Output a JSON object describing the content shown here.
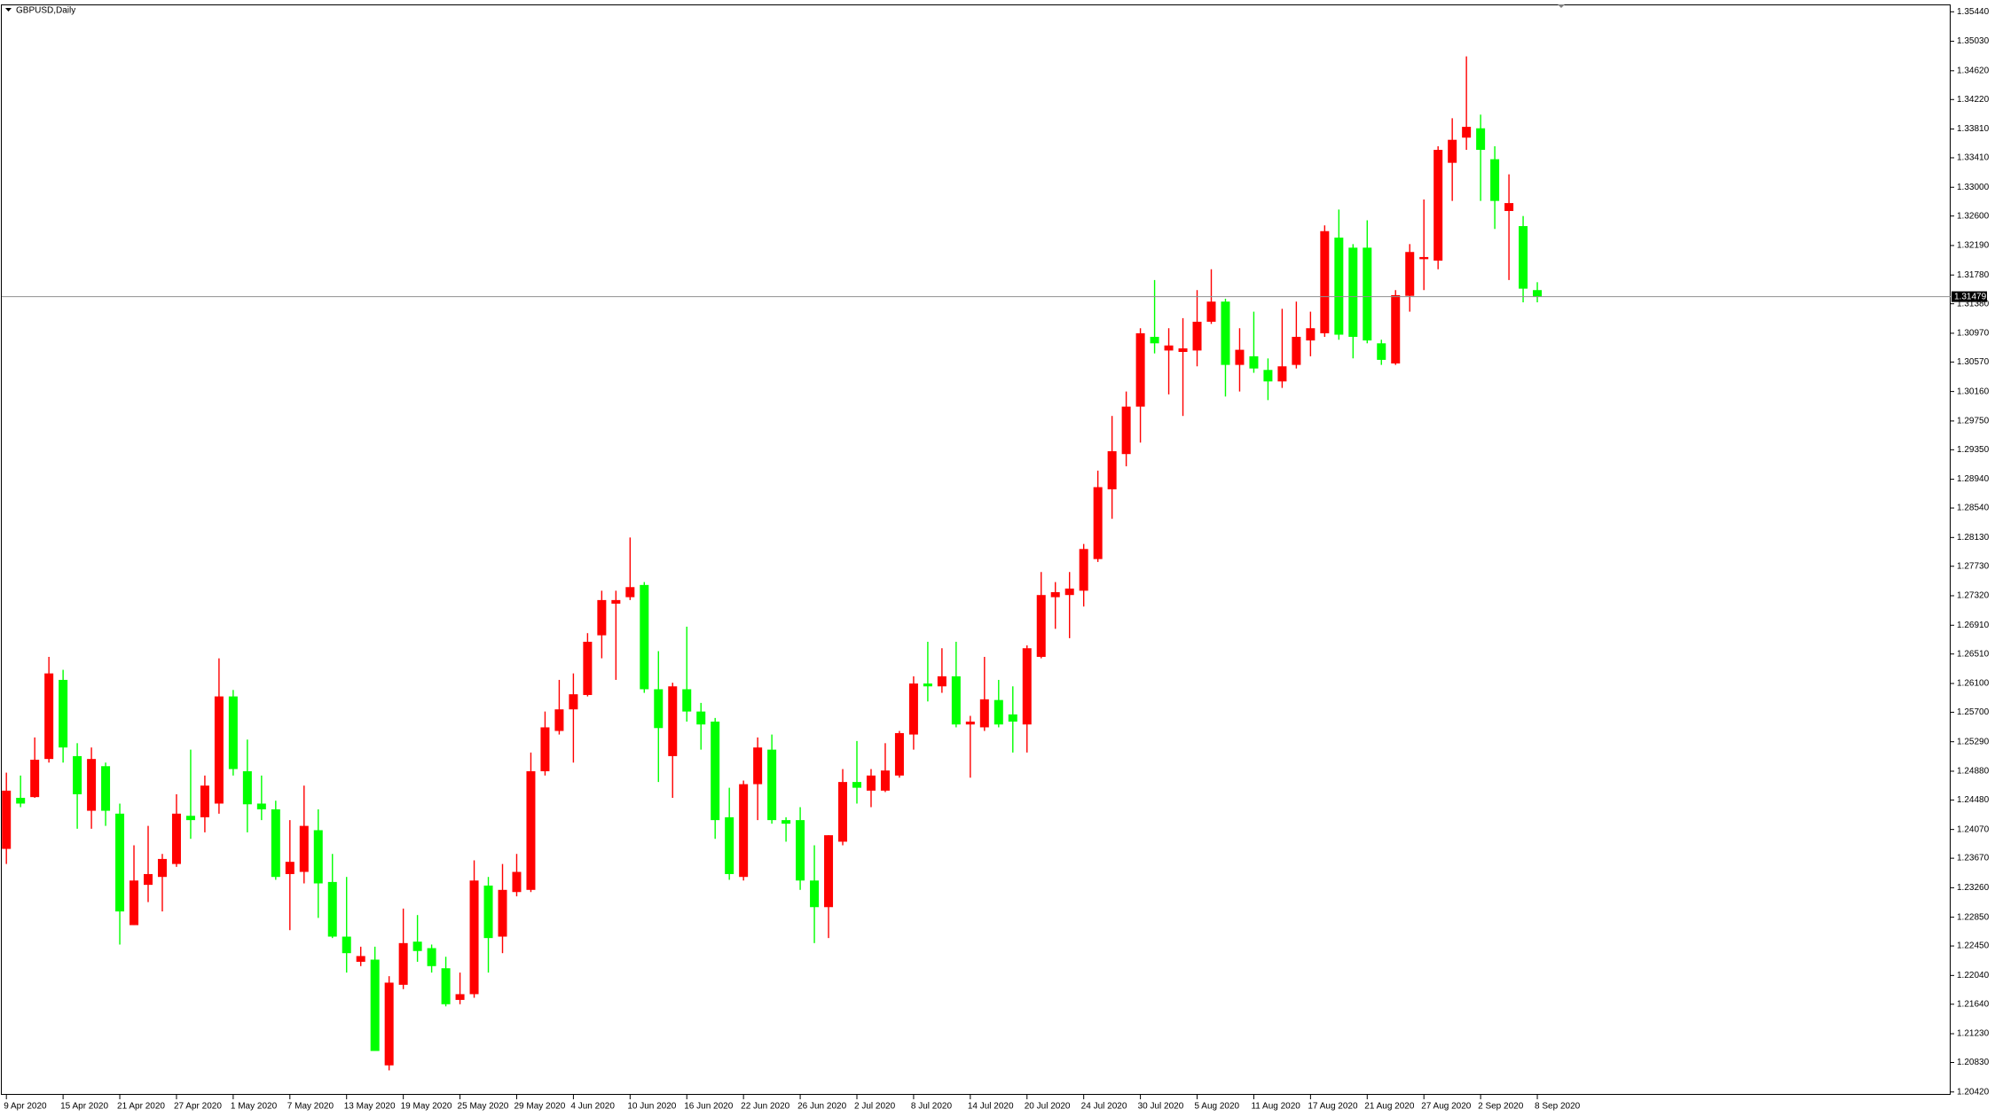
{
  "chart_data": {
    "type": "candlestick",
    "title": "GBPUSD,Daily",
    "up_color": "#ff0000",
    "down_color": "#00ff00",
    "price_line": 1.31479,
    "categories": [
      "9 Apr 2020",
      null,
      null,
      null,
      "15 Apr 2020",
      null,
      null,
      null,
      "21 Apr 2020",
      null,
      null,
      null,
      "27 Apr 2020",
      null,
      null,
      null,
      "1 May 2020",
      null,
      null,
      null,
      "7 May 2020",
      null,
      null,
      null,
      "13 May 2020",
      null,
      null,
      null,
      "19 May 2020",
      null,
      null,
      null,
      "25 May 2020",
      null,
      null,
      null,
      "29 May 2020",
      null,
      null,
      null,
      "4 Jun 2020",
      null,
      null,
      null,
      "10 Jun 2020",
      null,
      null,
      null,
      "16 Jun 2020",
      null,
      null,
      null,
      "22 Jun 2020",
      null,
      null,
      null,
      "26 Jun 2020",
      null,
      null,
      null,
      "2 Jul 2020",
      null,
      null,
      null,
      "8 Jul 2020",
      null,
      null,
      null,
      "14 Jul 2020",
      null,
      null,
      null,
      "20 Jul 2020",
      null,
      null,
      null,
      "24 Jul 2020",
      null,
      null,
      null,
      "30 Jul 2020",
      null,
      null,
      null,
      "5 Aug 2020",
      null,
      null,
      null,
      "11 Aug 2020",
      null,
      null,
      null,
      "17 Aug 2020",
      null,
      null,
      null,
      "21 Aug 2020",
      null,
      null,
      null,
      "27 Aug 2020",
      null,
      null,
      null,
      "2 Sep 2020",
      null,
      null,
      null,
      "8 Sep 2020"
    ],
    "open": [
      1.238,
      1.2451,
      1.2452,
      1.2505,
      1.2615,
      1.2509,
      1.2433,
      1.2495,
      1.2429,
      1.2274,
      1.233,
      1.2341,
      1.2359,
      1.2426,
      1.2424,
      1.2443,
      1.2592,
      1.2488,
      1.2443,
      1.2435,
      1.2345,
      1.2348,
      1.2406,
      1.2334,
      1.2258,
      1.2223,
      1.2226,
      1.2079,
      1.2191,
      1.2251,
      1.2242,
      1.2214,
      1.217,
      1.2178,
      1.2329,
      1.2258,
      1.232,
      1.2323,
      1.2488,
      1.2544,
      1.2574,
      1.2594,
      1.2677,
      1.2721,
      1.273,
      1.2747,
      1.2602,
      1.2509,
      1.2602,
      1.2571,
      1.2557,
      1.2424,
      1.2341,
      1.247,
      1.2518,
      1.242,
      1.242,
      1.2336,
      1.2299,
      1.239,
      1.2473,
      1.2461,
      1.2461,
      1.2482,
      1.2539,
      1.261,
      1.2606,
      1.262,
      1.2553,
      1.2549,
      1.2587,
      1.2567,
      1.2553,
      1.2647,
      1.273,
      1.2733,
      1.2739,
      1.2783,
      1.288,
      1.2929,
      1.2995,
      1.3092,
      1.3073,
      1.3071,
      1.3073,
      1.3113,
      1.3141,
      1.3053,
      1.3065,
      1.3046,
      1.303,
      1.3053,
      1.3087,
      1.3097,
      1.323,
      1.3216,
      1.3216,
      1.3083,
      1.3055,
      1.3149,
      1.32,
      1.3198,
      1.3334,
      1.3369,
      1.3382,
      1.3339,
      1.3267,
      1.3246,
      1.3157
    ],
    "high": [
      1.2486,
      1.2482,
      1.2535,
      1.2647,
      1.2629,
      1.2527,
      1.2521,
      1.25,
      1.2443,
      1.2385,
      1.2412,
      1.2373,
      1.2456,
      1.2518,
      1.2482,
      1.2645,
      1.2601,
      1.2532,
      1.2482,
      1.2447,
      1.242,
      1.2468,
      1.2435,
      1.2373,
      1.2341,
      1.2244,
      1.2244,
      1.2203,
      1.2297,
      1.2288,
      1.2247,
      1.223,
      1.2208,
      1.2364,
      1.2341,
      1.2359,
      1.2373,
      1.2514,
      1.2571,
      1.2615,
      1.2624,
      1.268,
      1.2739,
      1.2739,
      1.2813,
      1.2751,
      1.2655,
      1.2611,
      1.2689,
      1.2583,
      1.2562,
      1.2465,
      1.2475,
      1.2535,
      1.2539,
      1.2424,
      1.2438,
      1.2385,
      1.2399,
      1.2491,
      1.253,
      1.2491,
      1.2527,
      1.2544,
      1.262,
      1.2668,
      1.2659,
      1.2668,
      1.2565,
      1.2647,
      1.2615,
      1.2606,
      1.2663,
      1.2765,
      1.2751,
      1.2765,
      1.2804,
      1.2906,
      1.2982,
      1.3016,
      1.3104,
      1.3171,
      1.3104,
      1.3118,
      1.3157,
      1.3186,
      1.3145,
      1.3104,
      1.3127,
      1.3062,
      1.3131,
      1.3141,
      1.3127,
      1.3247,
      1.3269,
      1.3221,
      1.3254,
      1.3088,
      1.3157,
      1.3221,
      1.3283,
      1.3357,
      1.3396,
      1.3482,
      1.3401,
      1.3357,
      1.3318,
      1.326,
      1.3168
    ],
    "low": [
      1.2359,
      1.2438,
      1.2451,
      1.25,
      1.25,
      1.2408,
      1.2408,
      1.2412,
      1.2247,
      1.2274,
      1.2306,
      1.2293,
      1.2355,
      1.2394,
      1.2403,
      1.2429,
      1.2482,
      1.2403,
      1.242,
      1.2337,
      1.2267,
      1.2332,
      1.2284,
      1.2256,
      1.2208,
      1.2217,
      1.2099,
      1.2072,
      1.2185,
      1.2223,
      1.2208,
      1.2161,
      1.2164,
      1.2173,
      1.2208,
      1.2235,
      1.2314,
      1.232,
      1.2482,
      1.2539,
      1.25,
      1.2592,
      1.2645,
      1.2615,
      1.2726,
      1.2597,
      1.2473,
      1.2451,
      1.2557,
      1.2518,
      1.2394,
      1.2337,
      1.2336,
      1.242,
      1.2415,
      1.239,
      1.2323,
      1.2249,
      1.2256,
      1.2385,
      1.2443,
      1.2438,
      1.2459,
      1.2479,
      1.2518,
      1.2585,
      1.2597,
      1.2549,
      1.2479,
      1.2544,
      1.2549,
      1.2514,
      1.2514,
      1.2645,
      1.2686,
      1.2673,
      1.2717,
      1.2779,
      1.2839,
      1.2912,
      1.2945,
      1.3069,
      1.3012,
      1.2982,
      1.3051,
      1.311,
      1.3009,
      1.3016,
      1.3042,
      1.3004,
      1.3021,
      1.3048,
      1.3065,
      1.3092,
      1.3088,
      1.3062,
      1.3083,
      1.3053,
      1.3053,
      1.3127,
      1.3157,
      1.3186,
      1.3281,
      1.3352,
      1.3281,
      1.3242,
      1.3171,
      1.314,
      1.314
    ],
    "close": [
      1.2461,
      1.2443,
      1.2504,
      1.2624,
      1.2521,
      1.2456,
      1.2505,
      1.2433,
      1.2293,
      1.2336,
      1.2345,
      1.2366,
      1.2429,
      1.242,
      1.2468,
      1.2592,
      1.2491,
      1.2442,
      1.2435,
      1.2341,
      1.2362,
      1.2412,
      1.2332,
      1.2258,
      1.2235,
      1.2231,
      1.2099,
      1.2194,
      1.2249,
      1.2238,
      1.2217,
      1.2164,
      1.2178,
      1.2336,
      1.2256,
      1.2323,
      1.2348,
      1.2488,
      1.2549,
      1.2574,
      1.2595,
      1.2668,
      1.2726,
      1.2726,
      1.2744,
      1.2602,
      1.2548,
      1.2606,
      1.2571,
      1.2553,
      1.242,
      1.2345,
      1.247,
      1.2521,
      1.242,
      1.2415,
      1.2336,
      1.2299,
      1.2399,
      1.2473,
      1.2465,
      1.2482,
      1.2489,
      1.2541,
      1.261,
      1.2606,
      1.262,
      1.2553,
      1.2557,
      1.2588,
      1.2553,
      1.2557,
      1.2659,
      1.2733,
      1.2737,
      1.2742,
      1.2797,
      1.2883,
      1.2933,
      1.2995,
      1.3097,
      1.3083,
      1.308,
      1.3076,
      1.3113,
      1.3141,
      1.3053,
      1.3074,
      1.3048,
      1.303,
      1.3051,
      1.3092,
      1.3104,
      1.3239,
      1.3095,
      1.3092,
      1.3087,
      1.306,
      1.315,
      1.321,
      1.3203,
      1.3352,
      1.3366,
      1.3384,
      1.3352,
      1.3281,
      1.3278,
      1.3159,
      1.3148
    ],
    "ylim": [
      1.2038,
      1.3553
    ],
    "yticks": [
      {
        "value": 1.3544,
        "label": "1.35440"
      },
      {
        "value": 1.3503,
        "label": "1.35030"
      },
      {
        "value": 1.3462,
        "label": "1.34620"
      },
      {
        "value": 1.3422,
        "label": "1.34220"
      },
      {
        "value": 1.3381,
        "label": "1.33810"
      },
      {
        "value": 1.3341,
        "label": "1.33410"
      },
      {
        "value": 1.33,
        "label": "1.33000"
      },
      {
        "value": 1.326,
        "label": "1.32600"
      },
      {
        "value": 1.3219,
        "label": "1.32190"
      },
      {
        "value": 1.3178,
        "label": "1.31780"
      },
      {
        "value": 1.3138,
        "label": "1.31380"
      },
      {
        "value": 1.3097,
        "label": "1.30970"
      },
      {
        "value": 1.3057,
        "label": "1.30570"
      },
      {
        "value": 1.3016,
        "label": "1.30160"
      },
      {
        "value": 1.2975,
        "label": "1.29750"
      },
      {
        "value": 1.2935,
        "label": "1.29350"
      },
      {
        "value": 1.2894,
        "label": "1.28940"
      },
      {
        "value": 1.2854,
        "label": "1.28540"
      },
      {
        "value": 1.2813,
        "label": "1.28130"
      },
      {
        "value": 1.2773,
        "label": "1.27730"
      },
      {
        "value": 1.2732,
        "label": "1.27320"
      },
      {
        "value": 1.2691,
        "label": "1.26910"
      },
      {
        "value": 1.2651,
        "label": "1.26510"
      },
      {
        "value": 1.261,
        "label": "1.26100"
      },
      {
        "value": 1.257,
        "label": "1.25700"
      },
      {
        "value": 1.2529,
        "label": "1.25290"
      },
      {
        "value": 1.2488,
        "label": "1.24880"
      },
      {
        "value": 1.2448,
        "label": "1.24480"
      },
      {
        "value": 1.2407,
        "label": "1.24070"
      },
      {
        "value": 1.2367,
        "label": "1.23670"
      },
      {
        "value": 1.2326,
        "label": "1.23260"
      },
      {
        "value": 1.2285,
        "label": "1.22850"
      },
      {
        "value": 1.2245,
        "label": "1.22450"
      },
      {
        "value": 1.2204,
        "label": "1.22040"
      },
      {
        "value": 1.2164,
        "label": "1.21640"
      },
      {
        "value": 1.2123,
        "label": "1.21230"
      },
      {
        "value": 1.2083,
        "label": "1.20830"
      },
      {
        "value": 1.2042,
        "label": "1.20420"
      }
    ]
  }
}
